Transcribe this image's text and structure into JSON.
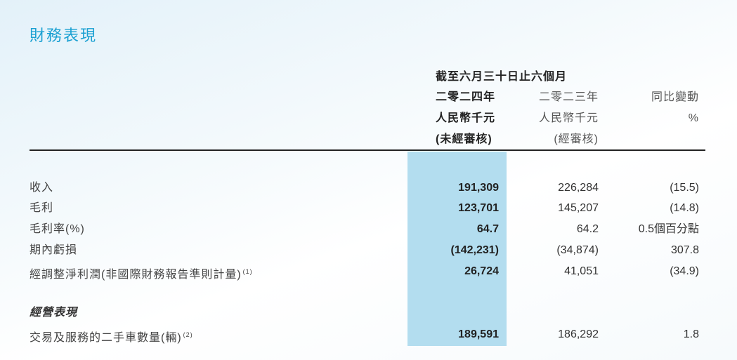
{
  "title": "財務表現",
  "header": {
    "period": "截至六月三十日止六個月",
    "columns": [
      {
        "year": "二零二四年",
        "unit": "人民幣千元",
        "note": "(未經審核)"
      },
      {
        "year": "二零二三年",
        "unit": "人民幣千元",
        "note": "(經審核)"
      },
      {
        "year": "同比變動",
        "unit": "%"
      }
    ]
  },
  "highlight_color": "#b3ddef",
  "title_color": "#1aa0d2",
  "rows": [
    {
      "label": "收入",
      "v2024": "191,309",
      "v2023": "226,284",
      "change": "(15.5)"
    },
    {
      "label": "毛利",
      "v2024": "123,701",
      "v2023": "145,207",
      "change": "(14.8)"
    },
    {
      "label": "毛利率(%)",
      "v2024": "64.7",
      "v2023": "64.2",
      "change": "0.5個百分點"
    },
    {
      "label": "期內虧損",
      "v2024": "(142,231)",
      "v2023": "(34,874)",
      "change": "307.8"
    },
    {
      "label": "經調整淨利潤(非國際財務報告準則計量)",
      "note": "(1)",
      "v2024": "26,724",
      "v2023": "41,051",
      "change": "(34.9)"
    }
  ],
  "section2": {
    "title": "經營表現",
    "rows": [
      {
        "label": "交易及服務的二手車數量(輛)",
        "note": "(2)",
        "v2024": "189,591",
        "v2023": "186,292",
        "change": "1.8"
      }
    ]
  }
}
